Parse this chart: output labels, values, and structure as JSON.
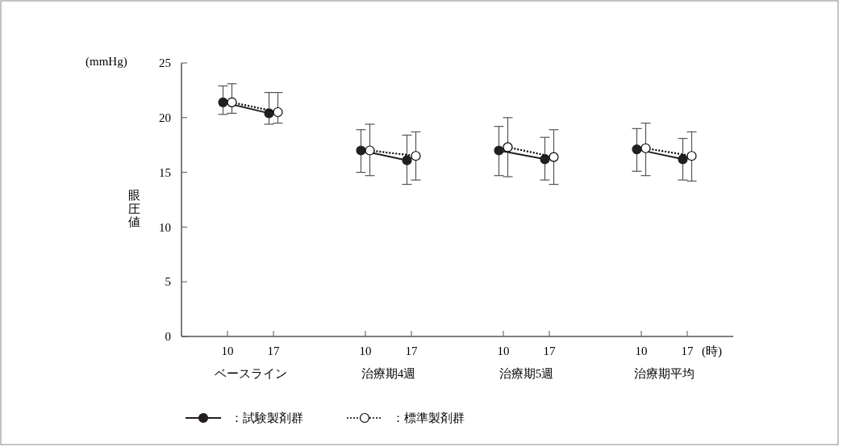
{
  "chart_data": {
    "type": "line",
    "ylabel": "眼圧値",
    "xlabel": "(時)",
    "categories": [
      "10",
      "17",
      null,
      "10",
      "17",
      null,
      "10",
      "17",
      null,
      "10",
      "17"
    ],
    "annotations": [
      "ベースライン",
      "治療期4週",
      "治療期5週",
      "治療期平均",
      "(mmHg)"
    ],
    "ylim": [
      0,
      25
    ],
    "yticks": [
      0,
      5,
      10,
      15,
      20,
      25
    ],
    "marker": "circle",
    "legend": "bottom left",
    "series": [
      {
        "name": "：試験製剤群",
        "color": "#231f20",
        "line_style": "solid",
        "values": [
          21.4,
          20.4,
          null,
          17.0,
          16.1,
          null,
          17.0,
          16.2,
          null,
          17.1,
          16.2
        ],
        "errors": [
          [
            20.3,
            22.9
          ],
          [
            19.4,
            22.3
          ],
          null,
          [
            15.0,
            18.9
          ],
          [
            13.9,
            18.4
          ],
          null,
          [
            14.7,
            19.2
          ],
          [
            14.3,
            18.2
          ],
          null,
          [
            15.1,
            19.0
          ],
          [
            14.3,
            18.1
          ]
        ]
      },
      {
        "name": "：標準製剤群",
        "color": "#000000",
        "line_style": "dotted",
        "values": [
          21.4,
          20.5,
          null,
          17.0,
          16.5,
          null,
          17.3,
          16.4,
          null,
          17.2,
          16.5
        ],
        "errors": [
          [
            20.4,
            23.1
          ],
          [
            19.5,
            22.3
          ],
          null,
          [
            14.7,
            19.4
          ],
          [
            14.3,
            18.7
          ],
          null,
          [
            14.6,
            20.0
          ],
          [
            13.9,
            18.9
          ],
          null,
          [
            14.7,
            19.5
          ],
          [
            14.2,
            18.7
          ]
        ]
      }
    ]
  }
}
